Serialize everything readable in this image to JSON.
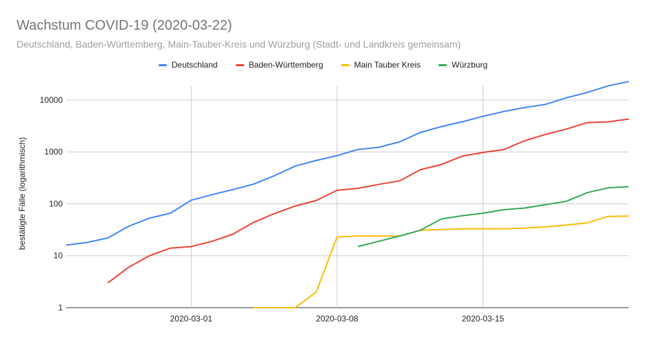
{
  "title": "Wachstum COVID-19 (2020-03-22)",
  "subtitle": "Deutschland, Baden-Württemberg, Main-Tauber-Kreis und Würzburg (Stadt- und Landkreis gemeinsam)",
  "chart_data": {
    "type": "line",
    "ylabel": "bestätigte Fälle (logarithmisch)",
    "xlabel": "",
    "yscale": "log",
    "ylim": [
      1,
      25000
    ],
    "yticks": [
      1,
      10,
      100,
      1000,
      10000
    ],
    "ytick_labels": [
      "1",
      "10",
      "100",
      "1000",
      "10000"
    ],
    "x": [
      "2020-02-24",
      "2020-02-25",
      "2020-02-26",
      "2020-02-27",
      "2020-02-28",
      "2020-02-29",
      "2020-03-01",
      "2020-03-02",
      "2020-03-03",
      "2020-03-04",
      "2020-03-05",
      "2020-03-06",
      "2020-03-07",
      "2020-03-08",
      "2020-03-09",
      "2020-03-10",
      "2020-03-11",
      "2020-03-12",
      "2020-03-13",
      "2020-03-14",
      "2020-03-15",
      "2020-03-16",
      "2020-03-17",
      "2020-03-18",
      "2020-03-19",
      "2020-03-20",
      "2020-03-21",
      "2020-03-22"
    ],
    "xticks": [
      "2020-03-01",
      "2020-03-08",
      "2020-03-15"
    ],
    "grid": true,
    "legend_position": "top-center",
    "series": [
      {
        "name": "Deutschland",
        "color": "#4285f4",
        "values": [
          16,
          18,
          22,
          37,
          53,
          66,
          117,
          150,
          188,
          240,
          349,
          534,
          684,
          847,
          1112,
          1224,
          1565,
          2369,
          3062,
          3795,
          4838,
          6012,
          7156,
          8198,
          10999,
          13957,
          18610,
          22672
        ]
      },
      {
        "name": "Baden-Württemberg",
        "color": "#ea4335",
        "values": [
          null,
          null,
          3,
          6,
          10,
          14,
          15,
          19,
          26,
          44,
          65,
          91,
          116,
          182,
          199,
          237,
          277,
          454,
          569,
          827,
          977,
          1105,
          1643,
          2170,
          2746,
          3668,
          3801,
          4292
        ]
      },
      {
        "name": "Main Tauber Kreis",
        "color": "#fbbc04",
        "values": [
          null,
          null,
          null,
          null,
          null,
          null,
          null,
          null,
          null,
          1,
          1,
          1,
          2,
          23,
          24,
          24,
          24,
          31,
          32,
          33,
          33,
          33,
          34,
          36,
          39,
          43,
          57,
          58
        ]
      },
      {
        "name": "Würzburg",
        "color": "#34a853",
        "values": [
          null,
          null,
          null,
          null,
          null,
          null,
          null,
          null,
          null,
          null,
          null,
          null,
          null,
          null,
          15,
          19,
          24,
          31,
          51,
          59,
          66,
          77,
          83,
          96,
          112,
          164,
          203,
          214
        ]
      }
    ]
  }
}
